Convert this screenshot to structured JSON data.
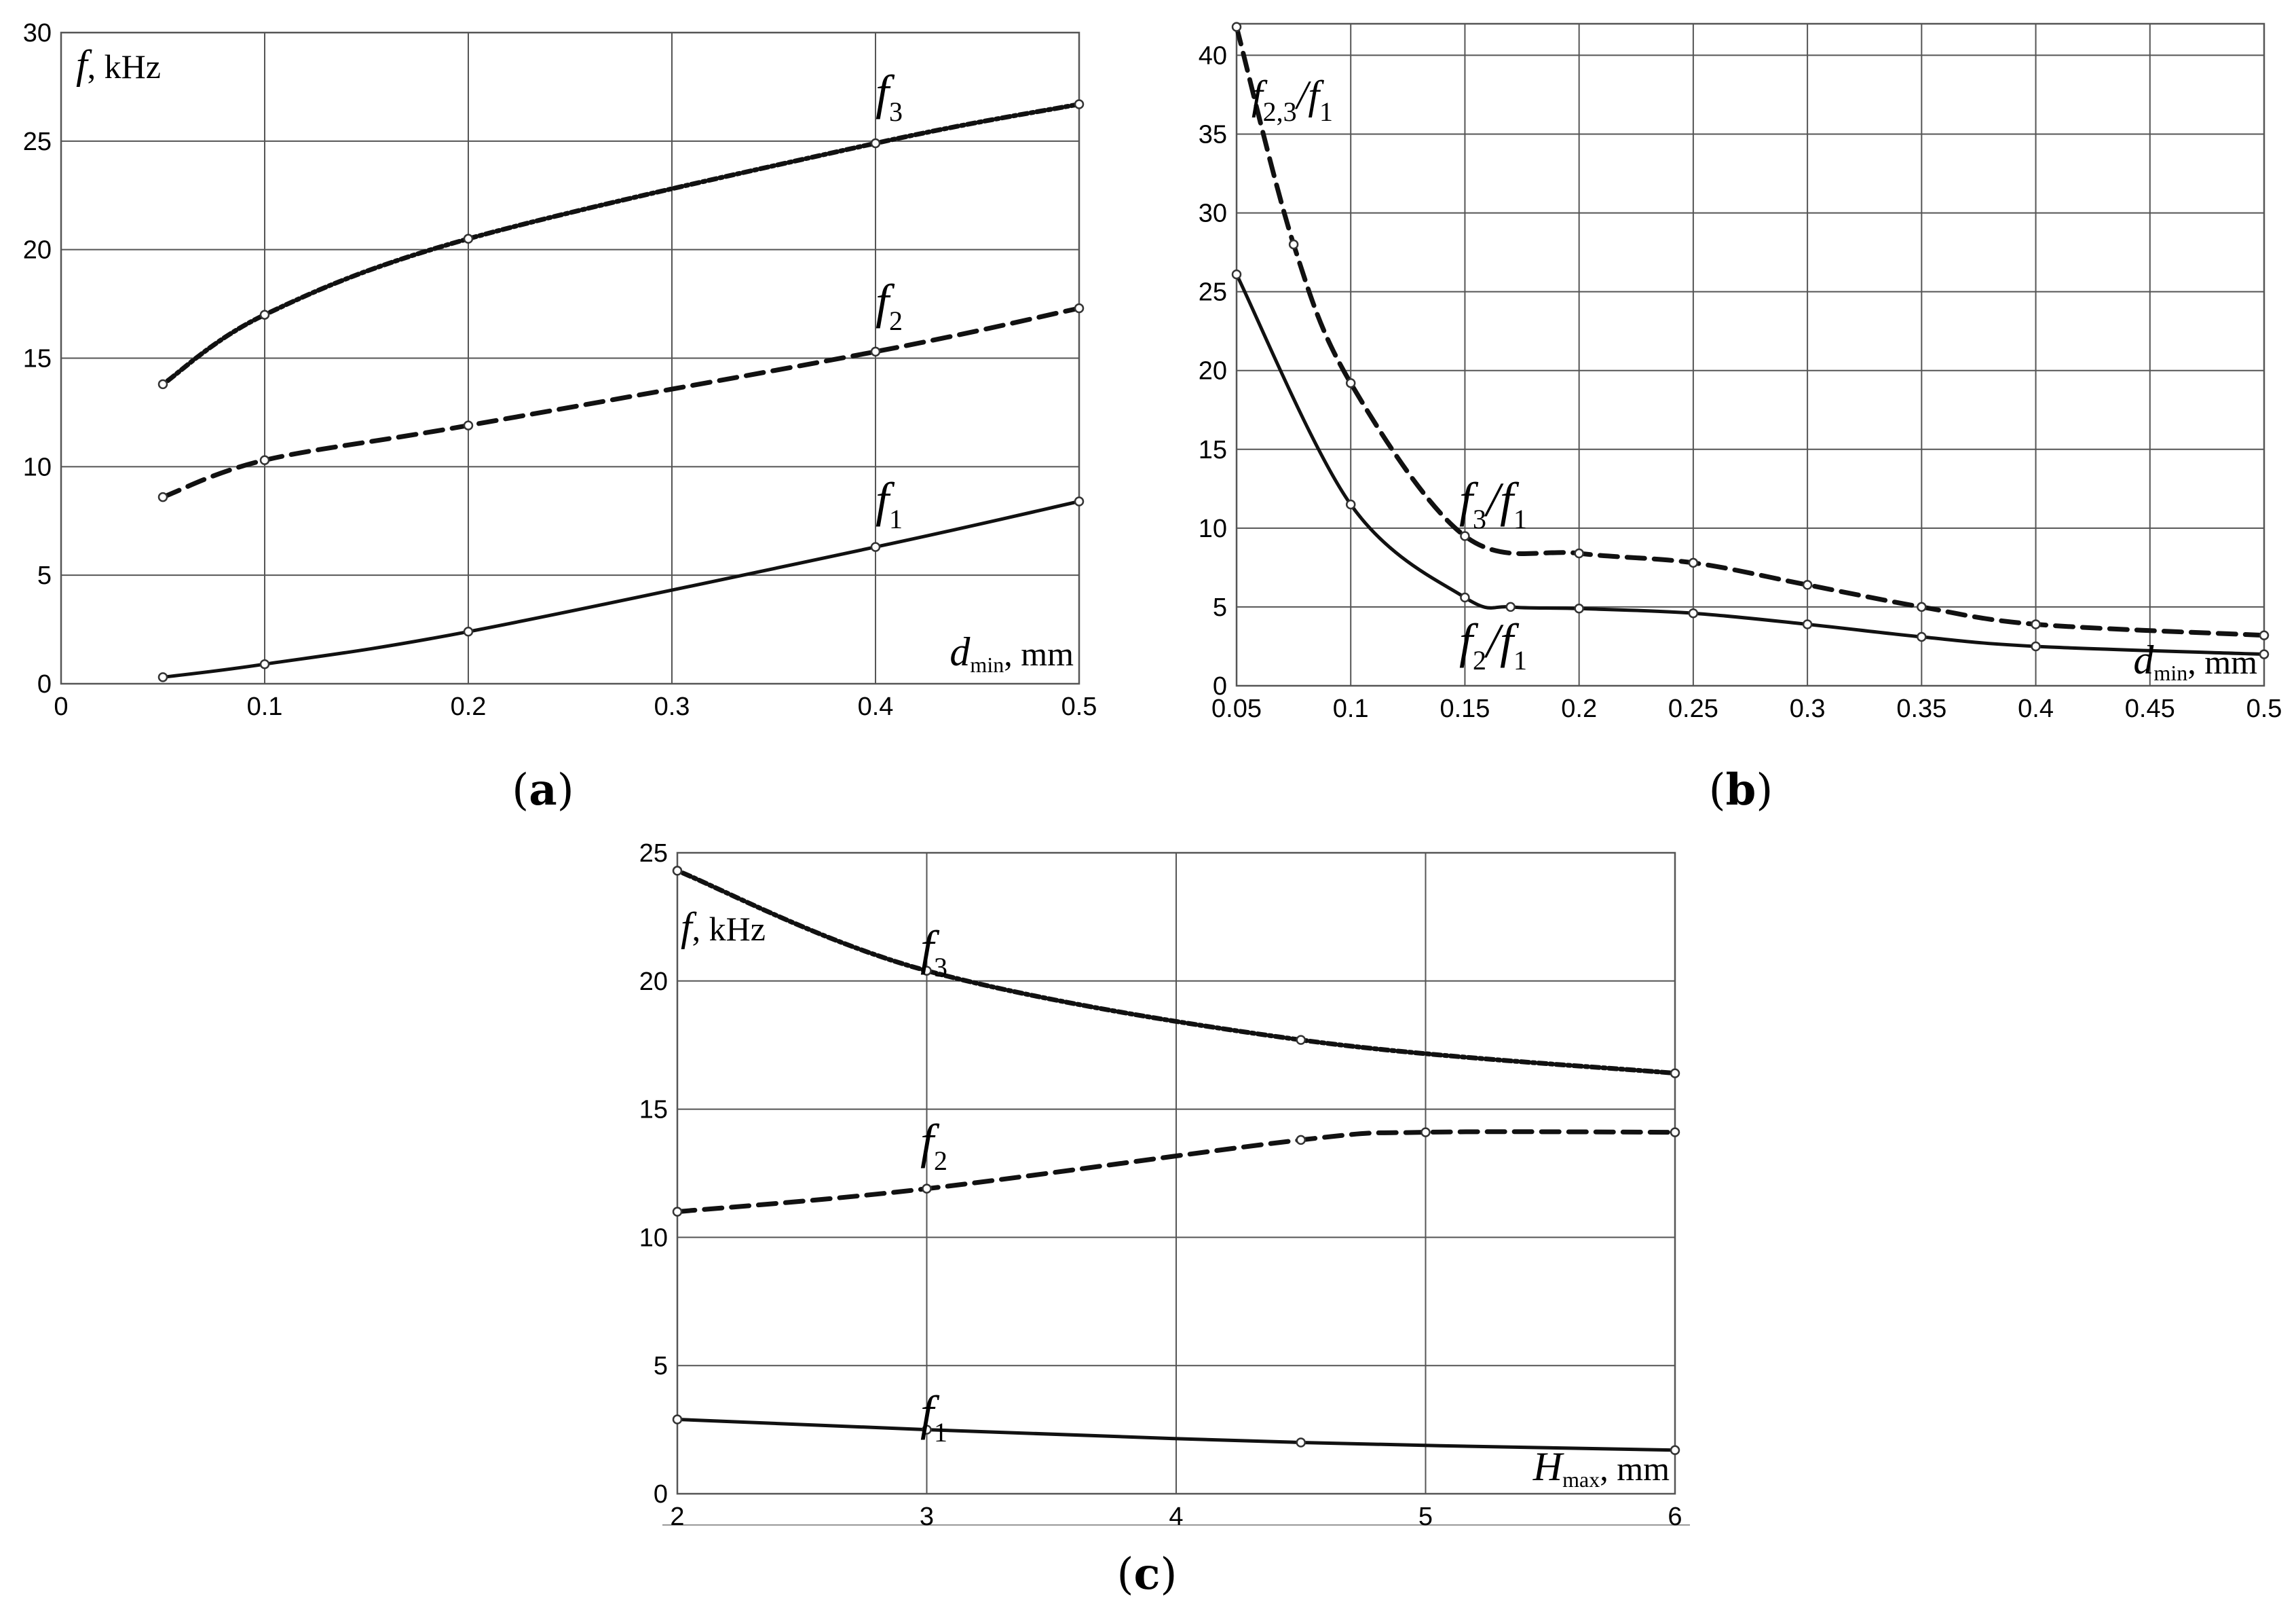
{
  "chart_data": [
    {
      "id": "a",
      "type": "line",
      "panel_label": "a",
      "xlabel": {
        "symbol": "d",
        "sub": "min",
        "unit": ", mm"
      },
      "ylabel": {
        "symbol": "f",
        "unit": ", kHz"
      },
      "xlim": [
        0,
        0.5
      ],
      "ylim": [
        0,
        30
      ],
      "xticks": [
        "0",
        "0.1",
        "0.2",
        "0.3",
        "0.4",
        "0.5"
      ],
      "yticks": [
        "0",
        "5",
        "10",
        "15",
        "20",
        "25",
        "30"
      ],
      "grid": true,
      "series": [
        {
          "name": "f1",
          "symbol": "f",
          "sub": "1",
          "dash": "solid",
          "x": [
            0.05,
            0.1,
            0.2,
            0.4,
            0.5
          ],
          "values": [
            0.3,
            0.9,
            2.4,
            6.3,
            8.4
          ]
        },
        {
          "name": "f2",
          "symbol": "f",
          "sub": "2",
          "dash": "dashed",
          "x": [
            0.05,
            0.1,
            0.2,
            0.4,
            0.5
          ],
          "values": [
            8.6,
            10.3,
            11.9,
            15.3,
            17.3
          ]
        },
        {
          "name": "f3",
          "symbol": "f",
          "sub": "3",
          "dash": "dashdot",
          "x": [
            0.05,
            0.1,
            0.2,
            0.4,
            0.5
          ],
          "values": [
            13.8,
            17.0,
            20.5,
            24.9,
            26.7
          ]
        }
      ]
    },
    {
      "id": "b",
      "type": "line",
      "panel_label": "b",
      "xlabel": {
        "symbol": "d",
        "sub": "min",
        "unit": ", mm"
      },
      "ylabel": {
        "symbol": "f",
        "sub": "2,3",
        "slash": "/",
        "symbol2": "f",
        "sub2": "1"
      },
      "xlim": [
        0.05,
        0.5
      ],
      "ylim": [
        0,
        42
      ],
      "xticks": [
        "0.05",
        "0.1",
        "0.15",
        "0.2",
        "0.25",
        "0.3",
        "0.35",
        "0.4",
        "0.45",
        "0.5"
      ],
      "yticks": [
        "0",
        "5",
        "10",
        "15",
        "20",
        "25",
        "30",
        "35",
        "40"
      ],
      "grid": true,
      "series": [
        {
          "name": "f2/f1",
          "symbol": "f",
          "sub": "2",
          "symbol2": "f",
          "sub2": "1",
          "dash": "solid",
          "x": [
            0.05,
            0.1,
            0.15,
            0.17,
            0.2,
            0.25,
            0.3,
            0.35,
            0.4,
            0.5
          ],
          "values": [
            26.1,
            11.5,
            5.6,
            5.0,
            4.9,
            4.6,
            3.9,
            3.1,
            2.5,
            2.0
          ]
        },
        {
          "name": "f3/f1",
          "symbol": "f",
          "sub": "3",
          "symbol2": "f",
          "sub2": "1",
          "dash": "dashed",
          "x": [
            0.05,
            0.075,
            0.1,
            0.15,
            0.2,
            0.25,
            0.3,
            0.35,
            0.4,
            0.5
          ],
          "values": [
            41.8,
            28.0,
            19.2,
            9.5,
            8.4,
            7.8,
            6.4,
            5.0,
            3.9,
            3.2
          ]
        }
      ]
    },
    {
      "id": "c",
      "type": "line",
      "panel_label": "c",
      "xlabel": {
        "symbol": "H",
        "sub": "max",
        "unit": ", mm"
      },
      "ylabel": {
        "symbol": "f",
        "unit": ", kHz"
      },
      "xlim": [
        2,
        6
      ],
      "ylim": [
        0,
        25
      ],
      "xticks": [
        "2",
        "3",
        "4",
        "5",
        "6"
      ],
      "yticks": [
        "0",
        "5",
        "10",
        "15",
        "20",
        "25"
      ],
      "grid": true,
      "series": [
        {
          "name": "f1",
          "symbol": "f",
          "sub": "1",
          "dash": "solid",
          "x": [
            2,
            3,
            4.5,
            6
          ],
          "values": [
            2.9,
            2.5,
            2.0,
            1.7
          ]
        },
        {
          "name": "f2",
          "symbol": "f",
          "sub": "2",
          "dash": "dashed",
          "x": [
            2,
            3,
            4.5,
            5,
            6
          ],
          "values": [
            11.0,
            11.9,
            13.8,
            14.1,
            14.1
          ]
        },
        {
          "name": "f3",
          "symbol": "f",
          "sub": "3",
          "dash": "dashdot",
          "x": [
            2,
            3,
            4.5,
            6
          ],
          "values": [
            24.3,
            20.4,
            17.7,
            16.4
          ]
        }
      ]
    }
  ]
}
